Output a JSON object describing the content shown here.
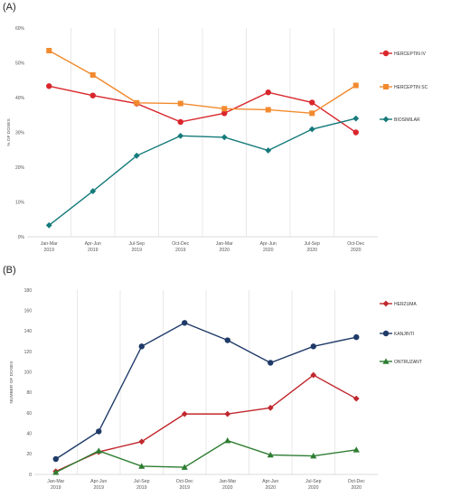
{
  "chart_data": [
    {
      "panel_label": "(A)",
      "type": "line",
      "categories": [
        [
          "Jan-Mar",
          "2019"
        ],
        [
          "Apr-Jun",
          "2019"
        ],
        [
          "Jul-Sep",
          "2019"
        ],
        [
          "Oct-Dec",
          "2019"
        ],
        [
          "Jan-Mar",
          "2020"
        ],
        [
          "Apr-Jun",
          "2020"
        ],
        [
          "Jul-Sep",
          "2020"
        ],
        [
          "Oct-Dec",
          "2020"
        ]
      ],
      "ylabel": "% OF DOSES",
      "ylim": [
        0,
        60
      ],
      "yticks": [
        "0%",
        "10%",
        "20%",
        "30%",
        "40%",
        "50%",
        "60%"
      ],
      "legend_position": "right",
      "series": [
        {
          "name": "HERCEPTIN IV",
          "color": "#d9262c",
          "marker": "circle",
          "values": [
            43.3,
            40.6,
            38.3,
            33.0,
            35.5,
            41.5,
            38.6,
            30.0
          ]
        },
        {
          "name": "HERCEPTIN SC",
          "color": "#f28a2e",
          "marker": "square",
          "values": [
            53.5,
            46.5,
            38.5,
            38.3,
            36.8,
            36.5,
            35.5,
            43.5
          ]
        },
        {
          "name": "BIOSIMILAR",
          "color": "#157a7a",
          "marker": "diamond",
          "values": [
            3.3,
            13.1,
            23.3,
            29.0,
            28.6,
            24.8,
            30.9,
            34.0
          ]
        }
      ]
    },
    {
      "panel_label": "(B)",
      "type": "line",
      "categories": [
        [
          "Jan-Mar",
          "2019"
        ],
        [
          "Apr-Jun",
          "2019"
        ],
        [
          "Jul-Sep",
          "2019"
        ],
        [
          "Oct-Dec",
          "2019"
        ],
        [
          "Jan-Mar",
          "2020"
        ],
        [
          "Apr-Jun",
          "2020"
        ],
        [
          "Jul-Sep",
          "2020"
        ],
        [
          "Oct-Dec",
          "2020"
        ]
      ],
      "ylabel": "NUMBER OF DOSES",
      "ylim": [
        0,
        180
      ],
      "yticks": [
        "0",
        "20",
        "40",
        "60",
        "80",
        "100",
        "120",
        "140",
        "160",
        "180"
      ],
      "legend_position": "right",
      "series": [
        {
          "name": "HERZUMA",
          "color": "#c0282d",
          "marker": "diamond",
          "values": [
            3,
            22,
            32,
            59,
            59,
            65,
            97,
            74
          ]
        },
        {
          "name": "KANJINTI",
          "color": "#1f3a68",
          "marker": "circle",
          "values": [
            15,
            42,
            125,
            148,
            131,
            109,
            125,
            134
          ]
        },
        {
          "name": "ONTRUZANT",
          "color": "#2e7d32",
          "marker": "triangle",
          "values": [
            2,
            23,
            8,
            7,
            33,
            19,
            18,
            24
          ]
        }
      ]
    }
  ]
}
